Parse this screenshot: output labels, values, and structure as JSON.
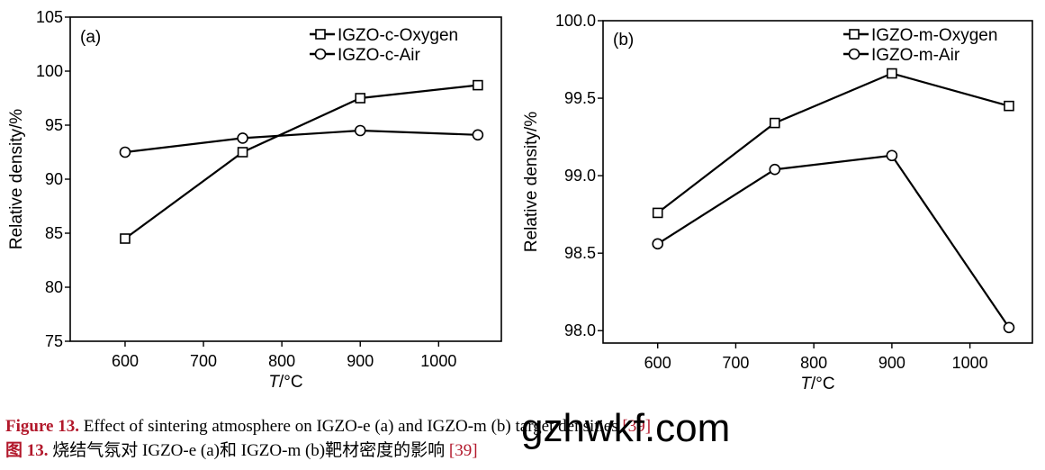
{
  "chart_data": [
    {
      "type": "line",
      "panel_label": "(a)",
      "xlabel": "T/°C",
      "xlabel_parts": [
        "T",
        "/°C"
      ],
      "ylabel": "Relative density/%",
      "xlim": [
        530,
        1080
      ],
      "ylim": [
        75,
        105
      ],
      "xticks": [
        600,
        700,
        800,
        900,
        1000
      ],
      "yticks": [
        75,
        80,
        85,
        90,
        95,
        100,
        105
      ],
      "ytick_labels": [
        "75",
        "80",
        "85",
        "90",
        "95",
        "100",
        "105"
      ],
      "grid": false,
      "legend_position": "top-right",
      "series": [
        {
          "name": "IGZO-c-Oxygen",
          "marker": "square",
          "x": [
            600,
            750,
            900,
            1050
          ],
          "values": [
            84.5,
            92.5,
            97.5,
            98.7
          ]
        },
        {
          "name": "IGZO-c-Air",
          "marker": "circle",
          "x": [
            600,
            750,
            900,
            1050
          ],
          "values": [
            92.5,
            93.8,
            94.5,
            94.1
          ]
        }
      ]
    },
    {
      "type": "line",
      "panel_label": "(b)",
      "xlabel": "T/°C",
      "xlabel_parts": [
        "T",
        "/°C"
      ],
      "ylabel": "Relative density/%",
      "xlim": [
        530,
        1080
      ],
      "ylim": [
        97.92,
        100.0
      ],
      "xticks": [
        600,
        700,
        800,
        900,
        1000
      ],
      "yticks": [
        98.0,
        98.5,
        99.0,
        99.5,
        100.0
      ],
      "ytick_labels": [
        "98.0",
        "98.5",
        "99.0",
        "99.5",
        "100.0"
      ],
      "grid": false,
      "legend_position": "top-right",
      "series": [
        {
          "name": "IGZO-m-Oxygen",
          "marker": "square",
          "x": [
            600,
            750,
            900,
            1050
          ],
          "values": [
            98.76,
            99.34,
            99.66,
            99.45
          ]
        },
        {
          "name": "IGZO-m-Air",
          "marker": "circle",
          "x": [
            600,
            750,
            900,
            1050
          ],
          "values": [
            98.56,
            99.04,
            99.13,
            98.02
          ]
        }
      ]
    }
  ],
  "caption": {
    "en_label": "Figure 13.",
    "en_text": "Effect of sintering atmosphere on IGZO-e (a) and IGZO-m (b) target densities",
    "en_ref": "[39]",
    "zh_label": "图 13.",
    "zh_text": "烧结气氛对 IGZO-e (a)和 IGZO-m (b)靶材密度的影响",
    "zh_ref": "[39]"
  },
  "watermark": "gzhwkf.com",
  "colors": {
    "caption_label": "#b2182b",
    "caption_ref": "#b2182b",
    "line": "#000000",
    "marker_fill": "#ffffff"
  }
}
